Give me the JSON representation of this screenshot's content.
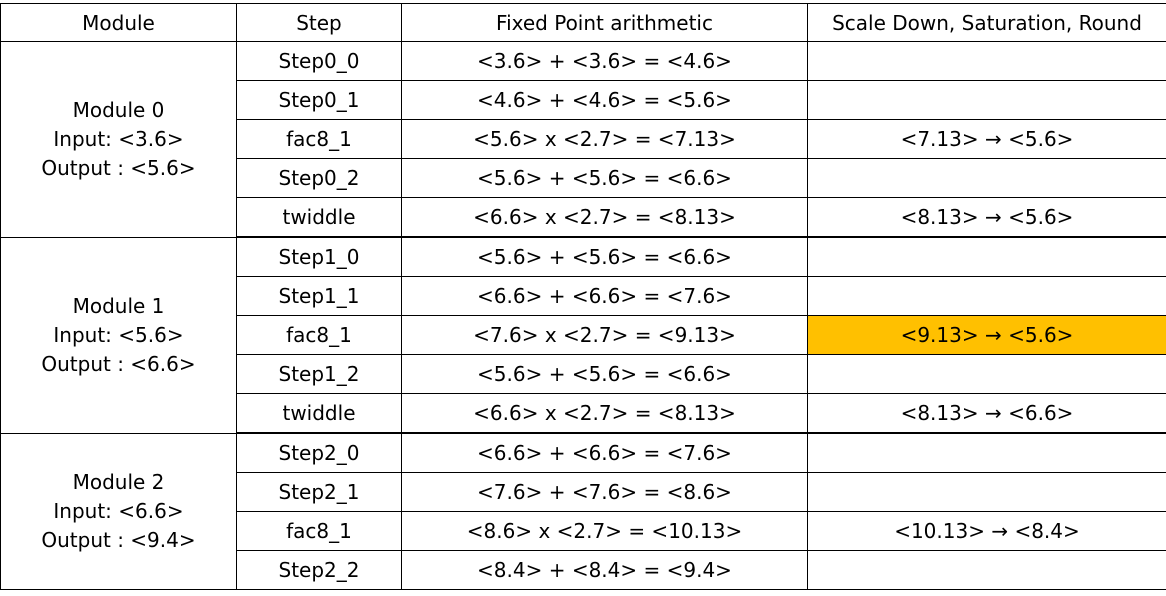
{
  "table": {
    "headers": {
      "module": "Module",
      "step": "Step",
      "fixed_point": "Fixed Point arithmetic",
      "scale": "Scale Down, Saturation, Round"
    },
    "highlight_color": "#ffc000",
    "modules": [
      {
        "name": "Module 0",
        "input": "Input: <3.6>",
        "output": "Output : <5.6>",
        "rows": [
          {
            "step": "Step0_0",
            "arith": "<3.6> + <3.6> = <4.6>",
            "scale": ""
          },
          {
            "step": "Step0_1",
            "arith": "<4.6> + <4.6> = <5.6>",
            "scale": ""
          },
          {
            "step": "fac8_1",
            "arith": "<5.6> x <2.7> = <7.13>",
            "scale": "<7.13> → <5.6>"
          },
          {
            "step": "Step0_2",
            "arith": "<5.6> + <5.6> = <6.6>",
            "scale": ""
          },
          {
            "step": "twiddle",
            "arith": "<6.6> x <2.7> = <8.13>",
            "scale": "<8.13> → <5.6>"
          }
        ]
      },
      {
        "name": "Module 1",
        "input": "Input: <5.6>",
        "output": "Output : <6.6>",
        "rows": [
          {
            "step": "Step1_0",
            "arith": "<5.6> + <5.6> = <6.6>",
            "scale": ""
          },
          {
            "step": "Step1_1",
            "arith": "<6.6> + <6.6> = <7.6>",
            "scale": ""
          },
          {
            "step": "fac8_1",
            "arith": "<7.6> x <2.7> = <9.13>",
            "scale": "<9.13> → <5.6>"
          },
          {
            "step": "Step1_2",
            "arith": "<5.6> + <5.6> = <6.6>",
            "scale": ""
          },
          {
            "step": "twiddle",
            "arith": "<6.6> x <2.7> = <8.13>",
            "scale": "<8.13> → <6.6>"
          }
        ]
      },
      {
        "name": "Module 2",
        "input": "Input: <6.6>",
        "output": "Output : <9.4>",
        "rows": [
          {
            "step": "Step2_0",
            "arith": "<6.6> + <6.6> = <7.6>",
            "scale": ""
          },
          {
            "step": "Step2_1",
            "arith": "<7.6> + <7.6> = <8.6>",
            "scale": ""
          },
          {
            "step": "fac8_1",
            "arith": "<8.6> x <2.7> = <10.13>",
            "scale": "<10.13> → <8.4>"
          },
          {
            "step": "Step2_2",
            "arith": "<8.4> + <8.4> = <9.4>",
            "scale": ""
          }
        ]
      }
    ]
  }
}
